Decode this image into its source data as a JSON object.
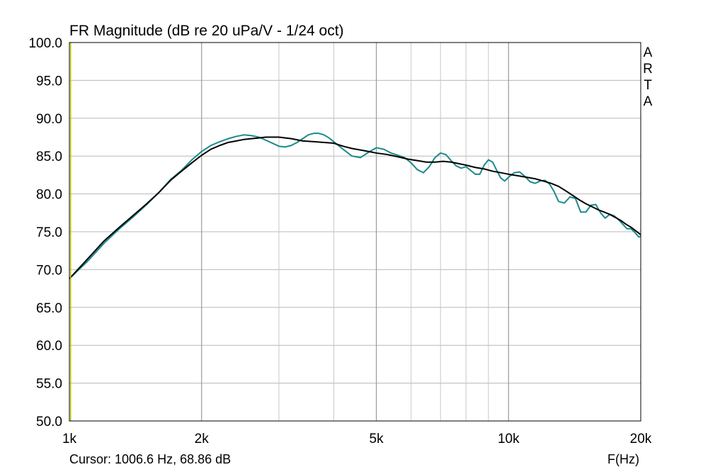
{
  "chart_data": {
    "type": "line",
    "title": "FR Magnitude (dB re 20 uPa/V - 1/24 oct)",
    "watermark": "ARTA",
    "xlabel": "F(Hz)",
    "xscale": "log",
    "xlim": [
      1000,
      20000
    ],
    "ylim": [
      50,
      100
    ],
    "x_ticks": [
      {
        "value": 1000,
        "label": "1k"
      },
      {
        "value": 2000,
        "label": "2k"
      },
      {
        "value": 5000,
        "label": "5k"
      },
      {
        "value": 10000,
        "label": "10k"
      },
      {
        "value": 20000,
        "label": "20k"
      }
    ],
    "y_ticks": [
      {
        "value": 100,
        "label": "100.0"
      },
      {
        "value": 95,
        "label": "95.0"
      },
      {
        "value": 90,
        "label": "90.0"
      },
      {
        "value": 85,
        "label": "85.0"
      },
      {
        "value": 80,
        "label": "80.0"
      },
      {
        "value": 75,
        "label": "75.0"
      },
      {
        "value": 70,
        "label": "70.0"
      },
      {
        "value": 65,
        "label": "65.0"
      },
      {
        "value": 60,
        "label": "60.0"
      },
      {
        "value": 55,
        "label": "55.0"
      },
      {
        "value": 50,
        "label": "50.0"
      }
    ],
    "grid": true,
    "cursor_text": "Cursor: 1006.6 Hz, 68.86 dB",
    "cursor_freq": 1006.6,
    "series": [
      {
        "color": "#1a8a8a",
        "x": [
          1000,
          1100,
          1200,
          1300,
          1400,
          1500,
          1600,
          1700,
          1800,
          1900,
          2000,
          2100,
          2200,
          2300,
          2400,
          2500,
          2600,
          2700,
          2800,
          2900,
          3000,
          3100,
          3200,
          3300,
          3400,
          3500,
          3600,
          3700,
          3800,
          3900,
          4000,
          4200,
          4400,
          4600,
          4800,
          5000,
          5200,
          5400,
          5600,
          5800,
          6000,
          6200,
          6400,
          6600,
          6800,
          7000,
          7200,
          7400,
          7600,
          7800,
          8000,
          8200,
          8400,
          8600,
          8800,
          9000,
          9200,
          9400,
          9600,
          9800,
          10000,
          10300,
          10600,
          10900,
          11200,
          11500,
          11800,
          12100,
          12400,
          12700,
          13000,
          13400,
          13800,
          14200,
          14600,
          15000,
          15400,
          15800,
          16200,
          16600,
          17000,
          17400,
          17800,
          18200,
          18600,
          19000,
          19400,
          19800,
          20000
        ],
        "values": [
          68.8,
          71.1,
          73.5,
          75.4,
          77.0,
          78.6,
          80.2,
          81.9,
          83.1,
          84.5,
          85.6,
          86.4,
          86.9,
          87.3,
          87.6,
          87.8,
          87.7,
          87.5,
          87.1,
          86.7,
          86.3,
          86.2,
          86.4,
          86.8,
          87.3,
          87.8,
          88.0,
          88.0,
          87.8,
          87.4,
          86.9,
          85.9,
          85.0,
          84.8,
          85.5,
          86.1,
          85.9,
          85.4,
          85.1,
          84.8,
          84.1,
          83.2,
          82.8,
          83.6,
          84.8,
          85.4,
          85.2,
          84.4,
          83.7,
          83.4,
          83.6,
          83.1,
          82.6,
          82.6,
          83.8,
          84.5,
          84.2,
          83.1,
          82.1,
          81.7,
          82.2,
          82.8,
          82.9,
          82.3,
          81.6,
          81.4,
          81.7,
          81.8,
          81.3,
          80.3,
          79.0,
          78.8,
          79.6,
          79.4,
          77.6,
          77.6,
          78.5,
          78.6,
          77.5,
          76.8,
          77.3,
          77.1,
          76.6,
          76.0,
          75.4,
          75.4,
          74.9,
          74.3,
          74.4
        ]
      },
      {
        "color": "#000000",
        "x": [
          1000,
          1100,
          1200,
          1300,
          1400,
          1500,
          1600,
          1700,
          1800,
          1900,
          2000,
          2100,
          2200,
          2300,
          2400,
          2500,
          2600,
          2700,
          2800,
          2900,
          3000,
          3200,
          3400,
          3600,
          3800,
          4000,
          4200,
          4400,
          4600,
          4800,
          5000,
          5300,
          5600,
          5900,
          6200,
          6500,
          6800,
          7100,
          7400,
          7700,
          8000,
          8400,
          8800,
          9200,
          9600,
          10000,
          10500,
          11000,
          11500,
          12000,
          12500,
          13000,
          13500,
          14000,
          14500,
          15000,
          15500,
          16000,
          16500,
          17000,
          17500,
          18000,
          18500,
          19000,
          19500,
          20000
        ],
        "values": [
          68.8,
          71.4,
          73.8,
          75.6,
          77.2,
          78.7,
          80.2,
          81.8,
          83.0,
          84.1,
          85.1,
          85.9,
          86.4,
          86.8,
          87.0,
          87.2,
          87.3,
          87.4,
          87.5,
          87.5,
          87.5,
          87.3,
          87.0,
          86.9,
          86.8,
          86.7,
          86.3,
          86.0,
          85.8,
          85.6,
          85.4,
          85.2,
          84.9,
          84.6,
          84.4,
          84.2,
          84.2,
          84.3,
          84.2,
          84.0,
          83.8,
          83.5,
          83.3,
          83.0,
          82.8,
          82.6,
          82.4,
          82.2,
          82.0,
          81.7,
          81.4,
          81.0,
          80.4,
          79.8,
          79.2,
          78.7,
          78.3,
          77.9,
          77.6,
          77.3,
          76.9,
          76.5,
          76.0,
          75.6,
          75.1,
          74.6
        ]
      }
    ]
  }
}
